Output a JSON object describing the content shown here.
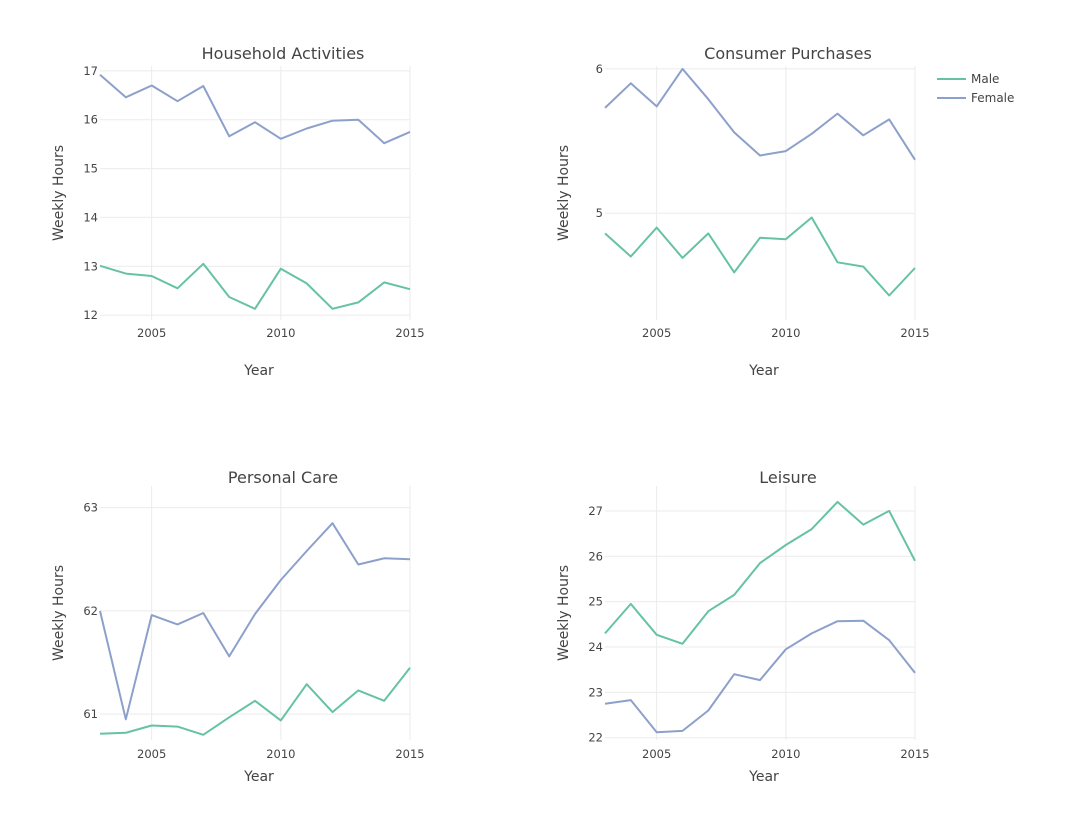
{
  "colors": {
    "male": "#66c2a5",
    "female": "#8da0cb",
    "grid": "#ebebeb",
    "text": "#444444"
  },
  "legend": {
    "placement": "top-right",
    "items": [
      {
        "label": "Male",
        "color": "#66c2a5"
      },
      {
        "label": "Female",
        "color": "#8da0cb"
      }
    ]
  },
  "chart_data": [
    {
      "type": "line",
      "title": "Household Activities",
      "xlabel": "Year",
      "ylabel": "Weekly Hours",
      "x": [
        2003,
        2004,
        2005,
        2006,
        2007,
        2008,
        2009,
        2010,
        2011,
        2012,
        2013,
        2014,
        2015
      ],
      "xticks": [
        2005,
        2010,
        2015
      ],
      "yticks": [
        12,
        13,
        14,
        15,
        16,
        17
      ],
      "xlim": [
        2003,
        2015
      ],
      "ylim": [
        11.9,
        17.1
      ],
      "grid": true,
      "series": [
        {
          "name": "Male",
          "values": [
            13.01,
            12.85,
            12.8,
            12.55,
            13.05,
            12.37,
            12.13,
            12.95,
            12.65,
            12.13,
            12.26,
            12.67,
            12.53
          ]
        },
        {
          "name": "Female",
          "values": [
            16.92,
            16.46,
            16.7,
            16.38,
            16.69,
            15.66,
            15.95,
            15.61,
            15.82,
            15.98,
            16.0,
            15.52,
            15.75
          ]
        }
      ]
    },
    {
      "type": "line",
      "title": "Consumer Purchases",
      "xlabel": "Year",
      "ylabel": "Weekly Hours",
      "x": [
        2003,
        2004,
        2005,
        2006,
        2007,
        2008,
        2009,
        2010,
        2011,
        2012,
        2013,
        2014,
        2015
      ],
      "xticks": [
        2005,
        2010,
        2015
      ],
      "yticks": [
        5,
        6
      ],
      "xlim": [
        2003,
        2015
      ],
      "ylim": [
        4.26,
        6.02
      ],
      "grid": true,
      "series": [
        {
          "name": "Male",
          "values": [
            4.86,
            4.7,
            4.9,
            4.69,
            4.86,
            4.59,
            4.83,
            4.82,
            4.97,
            4.66,
            4.63,
            4.43,
            4.62
          ]
        },
        {
          "name": "Female",
          "values": [
            5.73,
            5.9,
            5.74,
            6.0,
            5.79,
            5.56,
            5.4,
            5.43,
            5.55,
            5.69,
            5.54,
            5.65,
            5.37
          ]
        }
      ]
    },
    {
      "type": "line",
      "title": "Personal Care",
      "xlabel": "Year",
      "ylabel": "Weekly Hours",
      "x": [
        2003,
        2004,
        2005,
        2006,
        2007,
        2008,
        2009,
        2010,
        2011,
        2012,
        2013,
        2014,
        2015
      ],
      "xticks": [
        2005,
        2010,
        2015
      ],
      "yticks": [
        61,
        62,
        63
      ],
      "xlim": [
        2003,
        2015
      ],
      "ylim": [
        60.75,
        63.21
      ],
      "grid": true,
      "series": [
        {
          "name": "Male",
          "values": [
            60.81,
            60.82,
            60.89,
            60.88,
            60.8,
            60.97,
            61.13,
            60.94,
            61.29,
            61.02,
            61.23,
            61.13,
            61.45
          ]
        },
        {
          "name": "Female",
          "values": [
            62.0,
            60.95,
            61.96,
            61.87,
            61.98,
            61.56,
            61.97,
            62.3,
            62.58,
            62.85,
            62.45,
            62.51,
            62.5
          ]
        }
      ]
    },
    {
      "type": "line",
      "title": "Leisure",
      "xlabel": "Year",
      "ylabel": "Weekly Hours",
      "x": [
        2003,
        2004,
        2005,
        2006,
        2007,
        2008,
        2009,
        2010,
        2011,
        2012,
        2013,
        2014,
        2015
      ],
      "xticks": [
        2005,
        2010,
        2015
      ],
      "yticks": [
        22,
        23,
        24,
        25,
        26,
        27
      ],
      "xlim": [
        2003,
        2015
      ],
      "ylim": [
        21.95,
        27.55
      ],
      "grid": true,
      "series": [
        {
          "name": "Male",
          "values": [
            24.3,
            24.95,
            24.27,
            24.07,
            24.79,
            25.15,
            25.85,
            26.25,
            26.6,
            27.2,
            26.7,
            27.0,
            25.9
          ]
        },
        {
          "name": "Female",
          "values": [
            22.75,
            22.83,
            22.12,
            22.15,
            22.6,
            23.4,
            23.27,
            23.95,
            24.3,
            24.57,
            24.58,
            24.15,
            23.43
          ]
        }
      ]
    }
  ]
}
